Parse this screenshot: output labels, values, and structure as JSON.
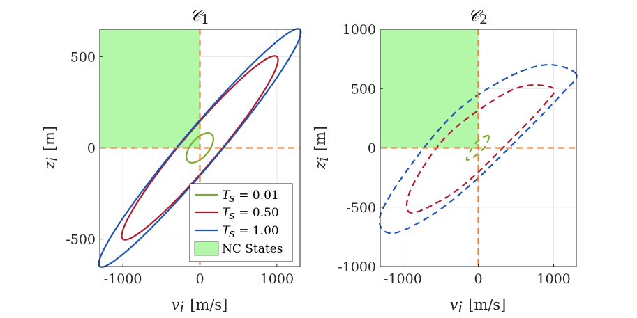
{
  "chart_data": [
    {
      "type": "line",
      "title": "𝒞",
      "title_sub": "1",
      "xlabel_var": "v",
      "xlabel_sub": "i",
      "xlabel_unit": "[m/s]",
      "ylabel_var": "z",
      "ylabel_sub": "i",
      "ylabel_unit": "[m]",
      "xlim": [
        -1300,
        1300
      ],
      "ylim": [
        -650,
        650
      ],
      "xticks": [
        -1000,
        0,
        1000
      ],
      "yticks": [
        -500,
        0,
        500
      ],
      "xtick_labels": [
        "-1000",
        "0",
        "1000"
      ],
      "ytick_labels": [
        "-500",
        "0",
        "500"
      ],
      "grid": true,
      "line_style": "solid",
      "region": {
        "label": "NC States",
        "x": [
          -1300,
          0
        ],
        "y": [
          0,
          650
        ],
        "color": "#b3f7a8"
      },
      "crosshair": {
        "x": 0,
        "y": 0,
        "color": "#f4813a"
      },
      "series": [
        {
          "name": "T_s = 0.01",
          "color": "#77ac30",
          "semi_major": [
            150,
            75
          ],
          "semi_minor_width": 26
        },
        {
          "name": "T_s = 0.50",
          "color": "#b01c2e",
          "semi_major": [
            1000,
            500
          ],
          "semi_minor_width": 50
        },
        {
          "name": "T_s = 1.00",
          "color": "#1f55b0",
          "semi_major": [
            1300,
            650
          ],
          "semi_minor_width": 52
        }
      ],
      "legend": {
        "position": "bottom-right",
        "entries": [
          {
            "var": "T",
            "sub": "s",
            "eq": " = 0.01",
            "color": "#77ac30"
          },
          {
            "var": "T",
            "sub": "s",
            "eq": " = 0.50",
            "color": "#b01c2e"
          },
          {
            "var": "T",
            "sub": "s",
            "eq": " = 1.00",
            "color": "#1f55b0"
          },
          {
            "label": "NC States",
            "color": "#b3f7a8"
          }
        ]
      }
    },
    {
      "type": "line",
      "title": "𝒞",
      "title_sub": "2",
      "xlabel_var": "v",
      "xlabel_sub": "i",
      "xlabel_unit": "[m/s]",
      "ylabel_var": "z",
      "ylabel_sub": "i",
      "ylabel_unit": "[m]",
      "xlim": [
        -1300,
        1300
      ],
      "ylim": [
        -1000,
        1000
      ],
      "xticks": [
        -1000,
        0,
        1000
      ],
      "yticks": [
        -1000,
        -500,
        0,
        500,
        1000
      ],
      "xtick_labels": [
        "-1000",
        "0",
        "1000"
      ],
      "ytick_labels": [
        "-1000",
        "-500",
        "0",
        "500",
        "1000"
      ],
      "grid": true,
      "line_style": "dashed",
      "region": {
        "x": [
          -1300,
          0
        ],
        "y": [
          0,
          1000
        ],
        "color": "#b3f7a8"
      },
      "crosshair": {
        "x": 0,
        "y": 0,
        "color": "#f4813a"
      },
      "series": [
        {
          "name": "T_s = 0.01",
          "color": "#77ac30",
          "points": [
            [
              140,
              100
            ],
            [
              40,
              80
            ],
            [
              -60,
              20
            ],
            [
              -155,
              -95
            ],
            [
              -80,
              -85
            ],
            [
              10,
              -40
            ],
            [
              100,
              20
            ]
          ]
        },
        {
          "name": "T_s = 0.50",
          "color": "#b01c2e",
          "points": [
            [
              1000,
              500
            ],
            [
              600,
              520
            ],
            [
              150,
              380
            ],
            [
              -450,
              80
            ],
            [
              -880,
              -330
            ],
            [
              -920,
              -540
            ],
            [
              -600,
              -480
            ],
            [
              -150,
              -290
            ],
            [
              450,
              80
            ],
            [
              870,
              360
            ]
          ]
        },
        {
          "name": "T_s = 1.00",
          "color": "#1f55b0",
          "points": [
            [
              1300,
              620
            ],
            [
              900,
              700
            ],
            [
              350,
              580
            ],
            [
              -300,
              300
            ],
            [
              -900,
              -150
            ],
            [
              -1300,
              -570
            ],
            [
              -1150,
              -720
            ],
            [
              -650,
              -580
            ],
            [
              -100,
              -310
            ],
            [
              600,
              120
            ],
            [
              1100,
              450
            ]
          ]
        }
      ]
    }
  ]
}
